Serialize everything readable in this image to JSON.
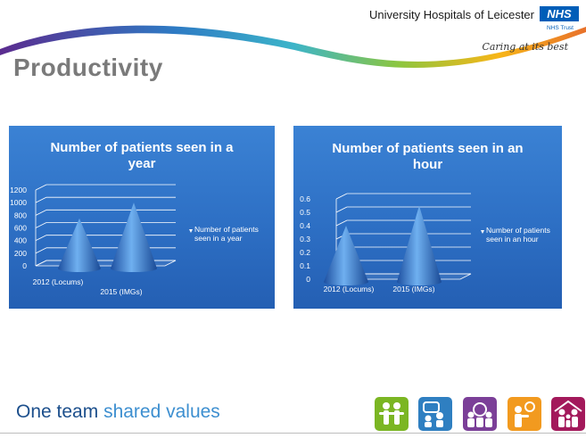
{
  "header": {
    "organization": "University Hospitals of Leicester",
    "nhs_logo": "NHS",
    "trust": "NHS Trust",
    "tagline": "Caring at its best",
    "swoosh_colors": [
      "#5b2c8f",
      "#2e7bc4",
      "#3cb4c9",
      "#8cc63f",
      "#f7b618",
      "#e8712b"
    ]
  },
  "slide": {
    "title": "Productivity"
  },
  "chart_data": [
    {
      "type": "bar",
      "style": "3d-cone",
      "title": "Number of patients seen in a year",
      "title_lines": [
        "Number of patients seen in a",
        "year"
      ],
      "categories": [
        "2012 (Locums)",
        "2015 (IMGs)"
      ],
      "series": [
        {
          "name": "Number of patients seen in a year",
          "values": [
            750,
            1000
          ]
        }
      ],
      "legend_lines": [
        "Number of patients",
        "seen in a year"
      ],
      "ylim": [
        0,
        1200
      ],
      "yticks": [
        "0",
        "200",
        "400",
        "600",
        "800",
        "1000",
        "1200"
      ],
      "grid": true,
      "legend_position": "right"
    },
    {
      "type": "bar",
      "style": "3d-cone",
      "title": "Number of patients seen in an hour",
      "title_lines": [
        "Number of patients seen in an",
        "hour"
      ],
      "categories": [
        "2012 (Locums)",
        "2015 (IMGs)"
      ],
      "series": [
        {
          "name": "Number of patients seen in an hour",
          "values": [
            0.4,
            0.55
          ]
        }
      ],
      "legend_lines": [
        "Number of patients",
        "seen in an hour"
      ],
      "ylim": [
        0,
        0.6
      ],
      "yticks": [
        "0",
        "0.1",
        "0.2",
        "0.3",
        "0.4",
        "0.5",
        "0.6"
      ],
      "grid": true,
      "legend_position": "right"
    }
  ],
  "footer": {
    "text_part1": "One team ",
    "text_part2": "shared values",
    "value_icons": [
      {
        "name": "team-people-icon",
        "color": "#7bb623"
      },
      {
        "name": "conversation-icon",
        "color": "#2f7fc1"
      },
      {
        "name": "group-circle-icon",
        "color": "#7b3f98"
      },
      {
        "name": "idea-lightbulb-icon",
        "color": "#f29a1f"
      },
      {
        "name": "family-icon",
        "color": "#a3195b"
      }
    ]
  }
}
